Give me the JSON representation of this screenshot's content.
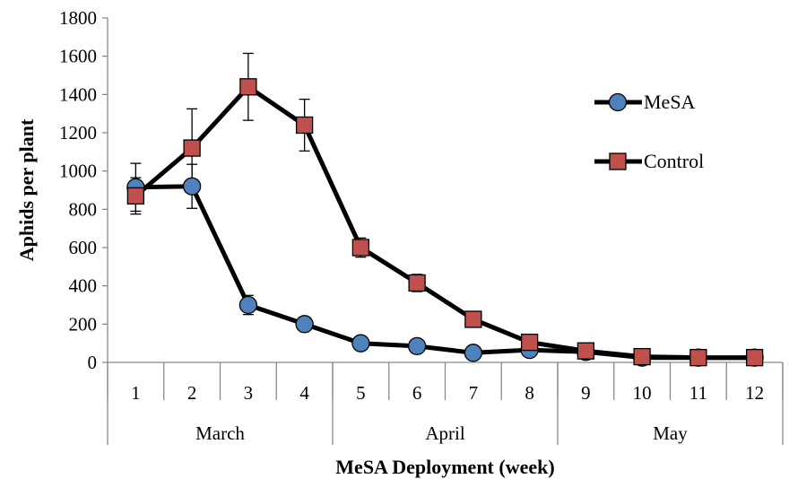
{
  "chart_data": {
    "type": "line",
    "xlabel": "MeSA Deployment (week)",
    "ylabel": "Aphids per plant",
    "ylim": [
      0,
      1800
    ],
    "yticks": [
      0,
      200,
      400,
      600,
      800,
      1000,
      1200,
      1400,
      1600,
      1800
    ],
    "categories": [
      "1",
      "2",
      "3",
      "4",
      "5",
      "6",
      "7",
      "8",
      "9",
      "10",
      "11",
      "12"
    ],
    "month_groups": [
      {
        "label": "March",
        "weeks": [
          "1",
          "2",
          "3",
          "4"
        ]
      },
      {
        "label": "April",
        "weeks": [
          "5",
          "6",
          "7",
          "8"
        ]
      },
      {
        "label": "May",
        "weeks": [
          "9",
          "10",
          "11",
          "12"
        ]
      }
    ],
    "legend_position": "right",
    "grid": false,
    "series": [
      {
        "name": "MeSA",
        "marker": "circle",
        "color": "#4f81bd",
        "values": [
          915,
          920,
          300,
          200,
          100,
          85,
          50,
          65,
          55,
          25,
          25,
          25
        ],
        "error": [
          125,
          115,
          50,
          0,
          0,
          0,
          0,
          0,
          0,
          0,
          0,
          0
        ]
      },
      {
        "name": "Control",
        "marker": "square",
        "color": "#c0504d",
        "values": [
          870,
          1120,
          1440,
          1240,
          600,
          415,
          225,
          105,
          60,
          30,
          25,
          25
        ],
        "error": [
          95,
          205,
          175,
          135,
          50,
          45,
          0,
          0,
          0,
          0,
          0,
          0
        ]
      }
    ]
  }
}
